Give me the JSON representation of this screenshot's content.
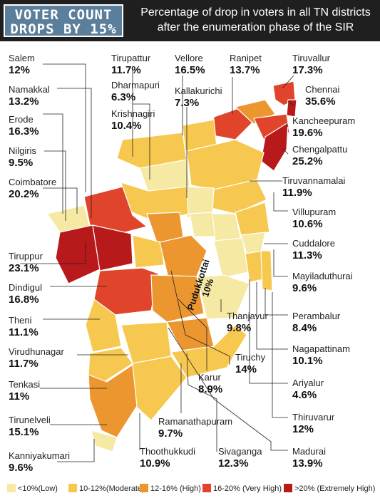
{
  "header": {
    "badge_line1": "VOTER COUNT",
    "badge_line2": "DROPS BY 15%",
    "title": "Percentage of drop in voters in all TN districts after the enumeration phase of the SIR"
  },
  "colors": {
    "low": "#f5e9a3",
    "moderate": "#f6c84f",
    "high": "#ec9630",
    "very_high": "#e0452b",
    "extreme": "#b8191b"
  },
  "districts": {
    "salem": {
      "name": "Salem",
      "value": "12%"
    },
    "namakkal": {
      "name": "Namakkal",
      "value": "13.2%"
    },
    "erode": {
      "name": "Erode",
      "value": "16.3%"
    },
    "nilgiris": {
      "name": "Nilgiris",
      "value": "9.5%"
    },
    "coimbatore": {
      "name": "Coimbatore",
      "value": "20.2%"
    },
    "tiruppur": {
      "name": "Tiruppur",
      "value": "23.1%"
    },
    "dindigul": {
      "name": "Dindigul",
      "value": "16.8%"
    },
    "theni": {
      "name": "Theni",
      "value": "11.1%"
    },
    "virudhunagar": {
      "name": "Virudhunagar",
      "value": "11.7%"
    },
    "tenkasi": {
      "name": "Tenkasi",
      "value": "11%"
    },
    "tirunelveli": {
      "name": "Tirunelveli",
      "value": "15.1%"
    },
    "kanniyakumari": {
      "name": "Kanniyakumari",
      "value": "9.6%"
    },
    "tirupattur": {
      "name": "Tirupattur",
      "value": "11.7%"
    },
    "dharmapuri": {
      "name": "Dharmapuri",
      "value": "6.3%"
    },
    "krishnagiri": {
      "name": "Krishnagiri",
      "value": "10.4%"
    },
    "vellore": {
      "name": "Vellore",
      "value": "16.5%"
    },
    "kallakurichi": {
      "name": "Kallakurichi",
      "value": "7.3%"
    },
    "ranipet": {
      "name": "Ranipet",
      "value": "13.7%"
    },
    "tiruvallur": {
      "name": "Tiruvallur",
      "value": "17.3%"
    },
    "chennai": {
      "name": "Chennai",
      "value": "35.6%"
    },
    "kancheepuram": {
      "name": "Kancheepuram",
      "value": "19.6%"
    },
    "chengalpattu": {
      "name": "Chengalpattu",
      "value": "25.2%"
    },
    "tiruvannamalai": {
      "name": "Tiruvannamalai",
      "value": "11.9%"
    },
    "villupuram": {
      "name": "Villupuram",
      "value": "10.6%"
    },
    "cuddalore": {
      "name": "Cuddalore",
      "value": "11.3%"
    },
    "mayiladuthurai": {
      "name": "Mayiladuthurai",
      "value": "9.6%"
    },
    "perambalur": {
      "name": "Perambalur",
      "value": "8.4%"
    },
    "nagapattinam": {
      "name": "Nagapattinam",
      "value": "10.1%"
    },
    "ariyalur": {
      "name": "Ariyalur",
      "value": "4.6%"
    },
    "thiruvarur": {
      "name": "Thiruvarur",
      "value": "12%"
    },
    "madurai": {
      "name": "Madurai",
      "value": "13.9%"
    },
    "sivaganga": {
      "name": "Sivaganga",
      "value": "12.3%"
    },
    "thoothukkudi": {
      "name": "Thoothukkudi",
      "value": "10.9%"
    },
    "ramanathapuram": {
      "name": "Ramanathapuram",
      "value": "9.7%"
    },
    "karur": {
      "name": "Karur",
      "value": "8.9%"
    },
    "tiruchy": {
      "name": "Tiruchy",
      "value": "14%"
    },
    "thanjavur": {
      "name": "Thanjavur",
      "value": "9.8%"
    },
    "pudukkottai": {
      "name": "Pudukkottai",
      "value": "10%"
    }
  },
  "legend": [
    {
      "label": "<10%(Low)",
      "color": "#f5e9a3"
    },
    {
      "label": "10-12%(Moderate)",
      "color": "#f6c84f"
    },
    {
      "label": "12-16% (High)",
      "color": "#ec9630"
    },
    {
      "label": "16-20% (Very High)",
      "color": "#e0452b"
    },
    {
      "label": ">20% (Extremely High)",
      "color": "#b8191b"
    }
  ]
}
